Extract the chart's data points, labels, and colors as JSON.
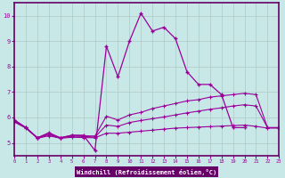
{
  "xlabel": "Windchill (Refroidissement éolien,°C)",
  "bg_color": "#c8e8e8",
  "line_color": "#990099",
  "border_color": "#660066",
  "label_bg": "#660066",
  "label_fg": "#ffffff",
  "xlim": [
    0,
    23
  ],
  "ylim": [
    4.5,
    10.5
  ],
  "xticks": [
    0,
    1,
    2,
    3,
    4,
    5,
    6,
    7,
    8,
    9,
    10,
    11,
    12,
    13,
    14,
    15,
    16,
    17,
    18,
    19,
    20,
    21,
    22,
    23
  ],
  "yticks": [
    5,
    6,
    7,
    8,
    9,
    10
  ],
  "grid_color": "#b0c8c8",
  "series": {
    "zigzag": {
      "x": [
        0,
        1,
        2,
        3,
        4,
        5,
        6,
        7,
        8,
        9,
        10,
        11,
        12,
        13,
        14,
        15,
        16,
        17,
        18,
        19,
        20,
        21,
        22,
        23
      ],
      "y": [
        5.9,
        5.6,
        5.2,
        5.4,
        5.2,
        5.3,
        5.3,
        4.7,
        8.8,
        7.6,
        9.0,
        10.1,
        9.4,
        9.55,
        9.1,
        7.8,
        7.3,
        7.3,
        6.9,
        5.6,
        5.6,
        null,
        null,
        null
      ]
    },
    "line1": {
      "x": [
        0,
        1,
        2,
        3,
        4,
        5,
        6,
        7,
        8,
        9,
        10,
        11,
        12,
        13,
        14,
        15,
        16,
        17,
        18,
        19,
        20,
        21,
        22,
        23
      ],
      "y": [
        5.9,
        5.6,
        5.2,
        5.35,
        5.2,
        5.3,
        5.28,
        5.27,
        6.05,
        5.9,
        6.1,
        6.2,
        6.35,
        6.45,
        6.55,
        6.65,
        6.7,
        6.8,
        6.85,
        6.9,
        6.95,
        6.9,
        5.6,
        5.6
      ]
    },
    "line2": {
      "x": [
        0,
        1,
        2,
        3,
        4,
        5,
        6,
        7,
        8,
        9,
        10,
        11,
        12,
        13,
        14,
        15,
        16,
        17,
        18,
        19,
        20,
        21,
        22,
        23
      ],
      "y": [
        5.85,
        5.6,
        5.2,
        5.32,
        5.2,
        5.26,
        5.25,
        5.23,
        5.7,
        5.65,
        5.8,
        5.88,
        5.95,
        6.02,
        6.1,
        6.18,
        6.25,
        6.32,
        6.38,
        6.45,
        6.5,
        6.45,
        5.6,
        5.6
      ]
    },
    "line3": {
      "x": [
        0,
        1,
        2,
        3,
        4,
        5,
        6,
        7,
        8,
        9,
        10,
        11,
        12,
        13,
        14,
        15,
        16,
        17,
        18,
        19,
        20,
        21,
        22,
        23
      ],
      "y": [
        5.82,
        5.58,
        5.18,
        5.28,
        5.18,
        5.22,
        5.21,
        5.2,
        5.38,
        5.38,
        5.42,
        5.46,
        5.5,
        5.54,
        5.58,
        5.6,
        5.62,
        5.64,
        5.66,
        5.68,
        5.7,
        5.65,
        5.58,
        5.58
      ]
    }
  }
}
